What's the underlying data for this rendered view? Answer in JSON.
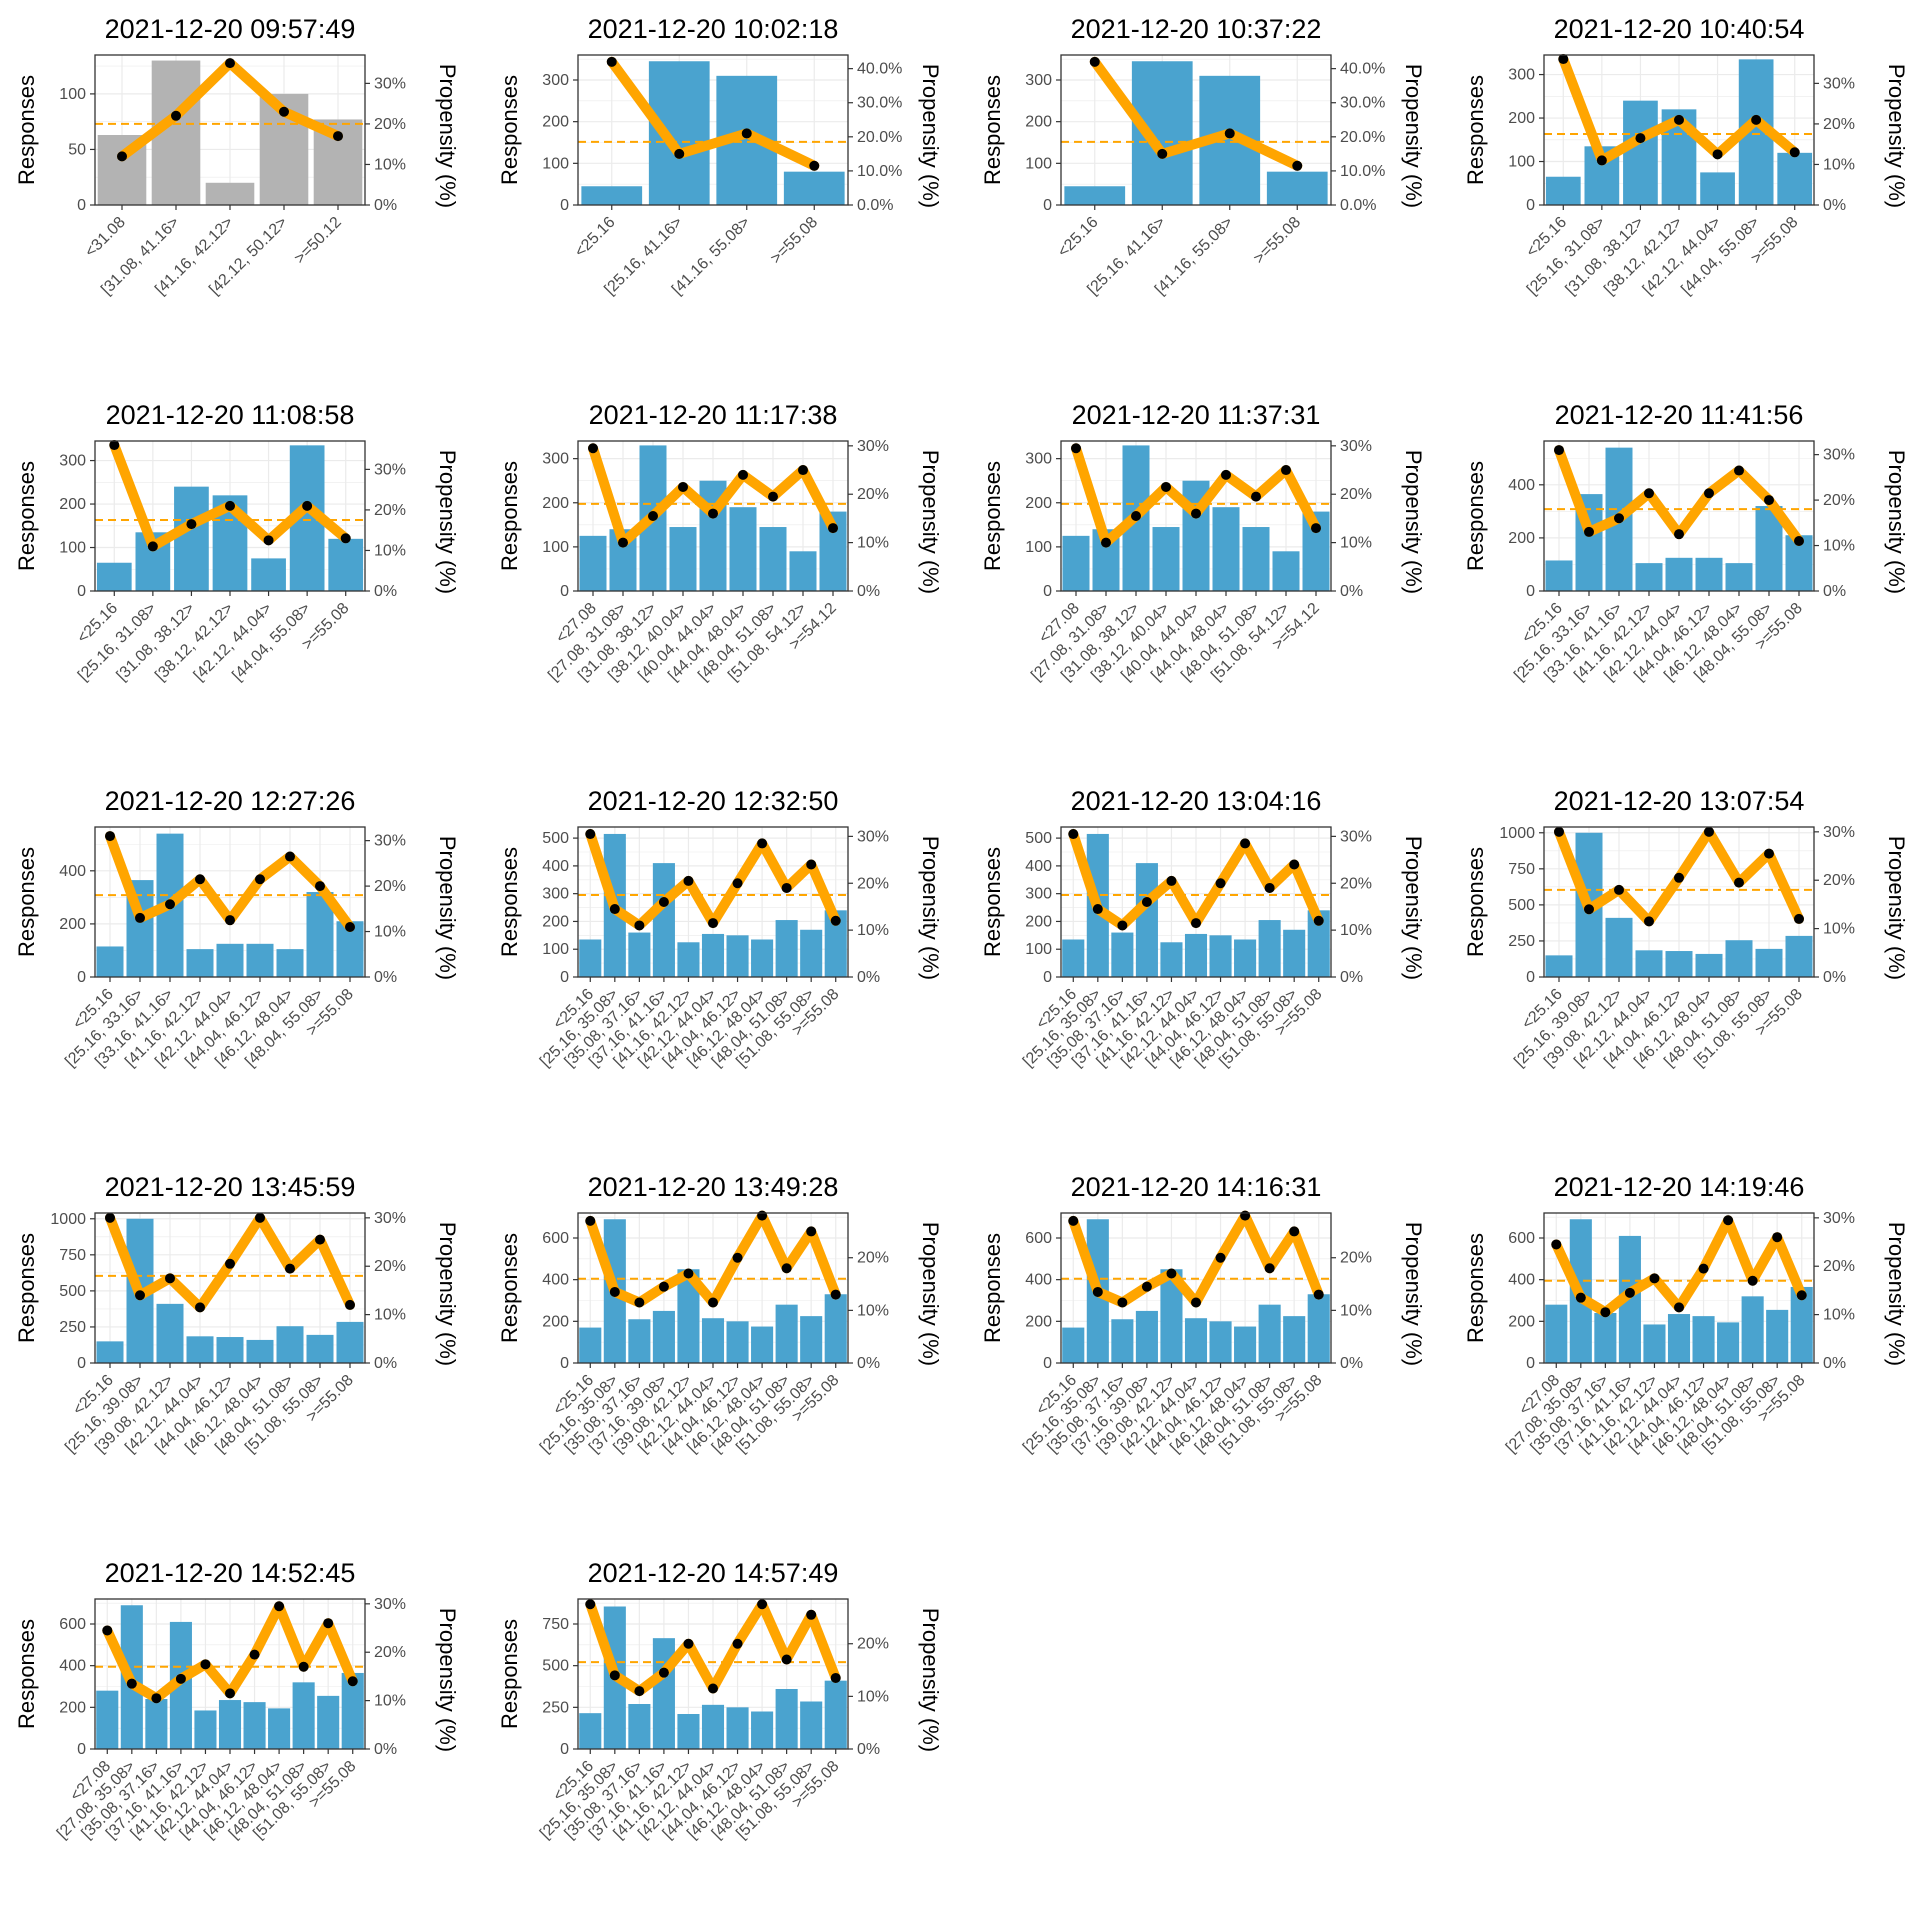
{
  "colors": {
    "bar_highlight": "#4aa3cf",
    "bar_muted": "#b3b3b3",
    "line": "#ffa500",
    "point": "#000000",
    "grid": "#ebebeb",
    "panel_border": "#333333",
    "mean_line": "#ffa500"
  },
  "chart_data": [
    {
      "type": "bar+line",
      "title": "2021-12-20 09:57:49",
      "ylabel": "Responses",
      "y2label": "Propensity (%)",
      "ylim": [
        0,
        135
      ],
      "y2lim": [
        0,
        0.37
      ],
      "yticks": [
        0,
        50,
        100
      ],
      "y2ticks": [
        0,
        0.1,
        0.2,
        0.3
      ],
      "y2format": "0",
      "bar_style": "muted",
      "categories": [
        "<31.08",
        "[31.08, 41.16>",
        "[41.16, 42.12>",
        "[42.12, 50.12>",
        ">=50.12"
      ],
      "responses": [
        63,
        130,
        20,
        100,
        77
      ],
      "propensity": [
        0.12,
        0.22,
        0.35,
        0.23,
        0.17
      ],
      "mean_propensity": 0.2
    },
    {
      "type": "bar+line",
      "title": "2021-12-20 10:02:18",
      "ylabel": "Responses",
      "y2label": "Propensity (%)",
      "ylim": [
        0,
        360
      ],
      "y2lim": [
        0,
        0.44
      ],
      "yticks": [
        0,
        100,
        200,
        300
      ],
      "y2ticks": [
        0,
        0.1,
        0.2,
        0.3,
        0.4
      ],
      "y2format": "1",
      "bar_style": "highlight",
      "categories": [
        "<25.16",
        "[25.16, 41.16>",
        "[41.16, 55.08>",
        ">=55.08"
      ],
      "responses": [
        45,
        345,
        310,
        80
      ],
      "propensity": [
        0.42,
        0.15,
        0.21,
        0.115
      ],
      "mean_propensity": 0.185
    },
    {
      "type": "bar+line",
      "title": "2021-12-20 10:37:22",
      "ylabel": "Responses",
      "y2label": "Propensity (%)",
      "ylim": [
        0,
        360
      ],
      "y2lim": [
        0,
        0.44
      ],
      "yticks": [
        0,
        100,
        200,
        300
      ],
      "y2ticks": [
        0,
        0.1,
        0.2,
        0.3,
        0.4
      ],
      "y2format": "1",
      "bar_style": "highlight",
      "categories": [
        "<25.16",
        "[25.16, 41.16>",
        "[41.16, 55.08>",
        ">=55.08"
      ],
      "responses": [
        45,
        345,
        310,
        80
      ],
      "propensity": [
        0.42,
        0.15,
        0.21,
        0.115
      ],
      "mean_propensity": 0.185
    },
    {
      "type": "bar+line",
      "title": "2021-12-20 10:40:54",
      "ylabel": "Responses",
      "y2label": "Propensity (%)",
      "ylim": [
        0,
        345
      ],
      "y2lim": [
        0,
        0.37
      ],
      "yticks": [
        0,
        100,
        200,
        300
      ],
      "y2ticks": [
        0,
        0.1,
        0.2,
        0.3
      ],
      "y2format": "0",
      "bar_style": "highlight",
      "categories": [
        "<25.16",
        "[25.16, 31.08>",
        "[31.08, 38.12>",
        "[38.12, 42.12>",
        "[42.12, 44.04>",
        "[44.04, 55.08>",
        ">=55.08"
      ],
      "responses": [
        65,
        135,
        240,
        220,
        75,
        335,
        120
      ],
      "propensity": [
        0.36,
        0.11,
        0.165,
        0.21,
        0.125,
        0.21,
        0.13
      ],
      "mean_propensity": 0.175
    },
    {
      "type": "bar+line",
      "title": "2021-12-20 11:08:58",
      "ylabel": "Responses",
      "y2label": "Propensity (%)",
      "ylim": [
        0,
        345
      ],
      "y2lim": [
        0,
        0.37
      ],
      "yticks": [
        0,
        100,
        200,
        300
      ],
      "y2ticks": [
        0,
        0.1,
        0.2,
        0.3
      ],
      "y2format": "0",
      "bar_style": "highlight",
      "categories": [
        "<25.16",
        "[25.16, 31.08>",
        "[31.08, 38.12>",
        "[38.12, 42.12>",
        "[42.12, 44.04>",
        "[44.04, 55.08>",
        ">=55.08"
      ],
      "responses": [
        65,
        135,
        240,
        220,
        75,
        335,
        120
      ],
      "propensity": [
        0.36,
        0.11,
        0.165,
        0.21,
        0.125,
        0.21,
        0.13
      ],
      "mean_propensity": 0.175
    },
    {
      "type": "bar+line",
      "title": "2021-12-20 11:17:38",
      "ylabel": "Responses",
      "y2label": "Propensity (%)",
      "ylim": [
        0,
        340
      ],
      "y2lim": [
        0,
        0.31
      ],
      "yticks": [
        0,
        100,
        200,
        300
      ],
      "y2ticks": [
        0,
        0.1,
        0.2,
        0.3
      ],
      "y2format": "0",
      "bar_style": "highlight",
      "categories": [
        "<27.08",
        "[27.08, 31.08>",
        "[31.08, 38.12>",
        "[38.12, 40.04>",
        "[40.04, 44.04>",
        "[44.04, 48.04>",
        "[48.04, 51.08>",
        "[51.08, 54.12>",
        ">=54.12"
      ],
      "responses": [
        125,
        140,
        330,
        145,
        250,
        190,
        145,
        90,
        180
      ],
      "propensity": [
        0.295,
        0.1,
        0.155,
        0.215,
        0.16,
        0.24,
        0.195,
        0.25,
        0.13
      ],
      "mean_propensity": 0.18
    },
    {
      "type": "bar+line",
      "title": "2021-12-20 11:37:31",
      "ylabel": "Responses",
      "y2label": "Propensity (%)",
      "ylim": [
        0,
        340
      ],
      "y2lim": [
        0,
        0.31
      ],
      "yticks": [
        0,
        100,
        200,
        300
      ],
      "y2ticks": [
        0,
        0.1,
        0.2,
        0.3
      ],
      "y2format": "0",
      "bar_style": "highlight",
      "categories": [
        "<27.08",
        "[27.08, 31.08>",
        "[31.08, 38.12>",
        "[38.12, 40.04>",
        "[40.04, 44.04>",
        "[44.04, 48.04>",
        "[48.04, 51.08>",
        "[51.08, 54.12>",
        ">=54.12"
      ],
      "responses": [
        125,
        140,
        330,
        145,
        250,
        190,
        145,
        90,
        180
      ],
      "propensity": [
        0.295,
        0.1,
        0.155,
        0.215,
        0.16,
        0.24,
        0.195,
        0.25,
        0.13
      ],
      "mean_propensity": 0.18
    },
    {
      "type": "bar+line",
      "title": "2021-12-20 11:41:56",
      "ylabel": "Responses",
      "y2label": "Propensity (%)",
      "ylim": [
        0,
        565
      ],
      "y2lim": [
        0,
        0.33
      ],
      "yticks": [
        0,
        200,
        400
      ],
      "y2ticks": [
        0,
        0.1,
        0.2,
        0.3
      ],
      "y2format": "0",
      "bar_style": "highlight",
      "categories": [
        "<25.16",
        "[25.16, 33.16>",
        "[33.16, 41.16>",
        "[41.16, 42.12>",
        "[42.12, 44.04>",
        "[44.04, 46.12>",
        "[46.12, 48.04>",
        "[48.04, 55.08>",
        ">=55.08"
      ],
      "responses": [
        115,
        365,
        540,
        105,
        125,
        125,
        105,
        320,
        210
      ],
      "propensity": [
        0.31,
        0.13,
        0.16,
        0.215,
        0.125,
        0.215,
        0.265,
        0.2,
        0.11
      ],
      "mean_propensity": 0.18
    },
    {
      "type": "bar+line",
      "title": "2021-12-20 12:27:26",
      "ylabel": "Responses",
      "y2label": "Propensity (%)",
      "ylim": [
        0,
        565
      ],
      "y2lim": [
        0,
        0.33
      ],
      "yticks": [
        0,
        200,
        400
      ],
      "y2ticks": [
        0,
        0.1,
        0.2,
        0.3
      ],
      "y2format": "0",
      "bar_style": "highlight",
      "categories": [
        "<25.16",
        "[25.16, 33.16>",
        "[33.16, 41.16>",
        "[41.16, 42.12>",
        "[42.12, 44.04>",
        "[44.04, 46.12>",
        "[46.12, 48.04>",
        "[48.04, 55.08>",
        ">=55.08"
      ],
      "responses": [
        115,
        365,
        540,
        105,
        125,
        125,
        105,
        320,
        210
      ],
      "propensity": [
        0.31,
        0.13,
        0.16,
        0.215,
        0.125,
        0.215,
        0.265,
        0.2,
        0.11
      ],
      "mean_propensity": 0.18
    },
    {
      "type": "bar+line",
      "title": "2021-12-20 12:32:50",
      "ylabel": "Responses",
      "y2label": "Propensity (%)",
      "ylim": [
        0,
        540
      ],
      "y2lim": [
        0,
        0.32
      ],
      "yticks": [
        0,
        100,
        200,
        300,
        400,
        500
      ],
      "y2ticks": [
        0,
        0.1,
        0.2,
        0.3
      ],
      "y2format": "0",
      "bar_style": "highlight",
      "categories": [
        "<25.16",
        "[25.16, 35.08>",
        "[35.08, 37.16>",
        "[37.16, 41.16>",
        "[41.16, 42.12>",
        "[42.12, 44.04>",
        "[44.04, 46.12>",
        "[46.12, 48.04>",
        "[48.04, 51.08>",
        "[51.08, 55.08>",
        ">=55.08"
      ],
      "responses": [
        135,
        515,
        160,
        410,
        125,
        155,
        150,
        135,
        205,
        170,
        240
      ],
      "propensity": [
        0.305,
        0.145,
        0.11,
        0.16,
        0.205,
        0.115,
        0.2,
        0.285,
        0.19,
        0.24,
        0.12
      ],
      "mean_propensity": 0.175
    },
    {
      "type": "bar+line",
      "title": "2021-12-20 13:04:16",
      "ylabel": "Responses",
      "y2label": "Propensity (%)",
      "ylim": [
        0,
        540
      ],
      "y2lim": [
        0,
        0.32
      ],
      "yticks": [
        0,
        100,
        200,
        300,
        400,
        500
      ],
      "y2ticks": [
        0,
        0.1,
        0.2,
        0.3
      ],
      "y2format": "0",
      "bar_style": "highlight",
      "categories": [
        "<25.16",
        "[25.16, 35.08>",
        "[35.08, 37.16>",
        "[37.16, 41.16>",
        "[41.16, 42.12>",
        "[42.12, 44.04>",
        "[44.04, 46.12>",
        "[46.12, 48.04>",
        "[48.04, 51.08>",
        "[51.08, 55.08>",
        ">=55.08"
      ],
      "responses": [
        135,
        515,
        160,
        410,
        125,
        155,
        150,
        135,
        205,
        170,
        240
      ],
      "propensity": [
        0.305,
        0.145,
        0.11,
        0.16,
        0.205,
        0.115,
        0.2,
        0.285,
        0.19,
        0.24,
        0.12
      ],
      "mean_propensity": 0.175
    },
    {
      "type": "bar+line",
      "title": "2021-12-20 13:07:54",
      "ylabel": "Responses",
      "y2label": "Propensity (%)",
      "ylim": [
        0,
        1040
      ],
      "y2lim": [
        0,
        0.31
      ],
      "yticks": [
        0,
        250,
        500,
        750,
        1000
      ],
      "y2ticks": [
        0,
        0.1,
        0.2,
        0.3
      ],
      "y2format": "0",
      "bar_style": "highlight",
      "categories": [
        "<25.16",
        "[25.16, 39.08>",
        "[39.08, 42.12>",
        "[42.12, 44.04>",
        "[44.04, 46.12>",
        "[46.12, 48.04>",
        "[48.04, 51.08>",
        "[51.08, 55.08>",
        ">=55.08"
      ],
      "responses": [
        150,
        1000,
        410,
        185,
        180,
        160,
        255,
        195,
        285
      ],
      "propensity": [
        0.3,
        0.14,
        0.18,
        0.115,
        0.205,
        0.3,
        0.195,
        0.255,
        0.12
      ],
      "mean_propensity": 0.18
    },
    {
      "type": "bar+line",
      "title": "2021-12-20 13:45:59",
      "ylabel": "Responses",
      "y2label": "Propensity (%)",
      "ylim": [
        0,
        1040
      ],
      "y2lim": [
        0,
        0.31
      ],
      "yticks": [
        0,
        250,
        500,
        750,
        1000
      ],
      "y2ticks": [
        0,
        0.1,
        0.2,
        0.3
      ],
      "y2format": "0",
      "bar_style": "highlight",
      "categories": [
        "<25.16",
        "[25.16, 39.08>",
        "[39.08, 42.12>",
        "[42.12, 44.04>",
        "[44.04, 46.12>",
        "[46.12, 48.04>",
        "[48.04, 51.08>",
        "[51.08, 55.08>",
        ">=55.08"
      ],
      "responses": [
        150,
        1000,
        410,
        185,
        180,
        160,
        255,
        195,
        285
      ],
      "propensity": [
        0.3,
        0.14,
        0.175,
        0.115,
        0.205,
        0.3,
        0.195,
        0.255,
        0.12
      ],
      "mean_propensity": 0.18
    },
    {
      "type": "bar+line",
      "title": "2021-12-20 13:49:28",
      "ylabel": "Responses",
      "y2label": "Propensity (%)",
      "ylim": [
        0,
        720
      ],
      "y2lim": [
        0,
        0.285
      ],
      "yticks": [
        0,
        200,
        400,
        600
      ],
      "y2ticks": [
        0,
        0.1,
        0.2
      ],
      "y2format": "0",
      "bar_style": "highlight",
      "categories": [
        "<25.16",
        "[25.16, 35.08>",
        "[35.08, 37.16>",
        "[37.16, 39.08>",
        "[39.08, 42.12>",
        "[42.12, 44.04>",
        "[44.04, 46.12>",
        "[46.12, 48.04>",
        "[48.04, 51.08>",
        "[51.08, 55.08>",
        ">=55.08"
      ],
      "responses": [
        170,
        690,
        210,
        250,
        450,
        215,
        200,
        175,
        280,
        225,
        330
      ],
      "propensity": [
        0.27,
        0.135,
        0.115,
        0.145,
        0.17,
        0.115,
        0.2,
        0.28,
        0.18,
        0.25,
        0.13
      ],
      "mean_propensity": 0.16
    },
    {
      "type": "bar+line",
      "title": "2021-12-20 14:16:31",
      "ylabel": "Responses",
      "y2label": "Propensity (%)",
      "ylim": [
        0,
        720
      ],
      "y2lim": [
        0,
        0.285
      ],
      "yticks": [
        0,
        200,
        400,
        600
      ],
      "y2ticks": [
        0,
        0.1,
        0.2
      ],
      "y2format": "0",
      "bar_style": "highlight",
      "categories": [
        "<25.16",
        "[25.16, 35.08>",
        "[35.08, 37.16>",
        "[37.16, 39.08>",
        "[39.08, 42.12>",
        "[42.12, 44.04>",
        "[44.04, 46.12>",
        "[46.12, 48.04>",
        "[48.04, 51.08>",
        "[51.08, 55.08>",
        ">=55.08"
      ],
      "responses": [
        170,
        690,
        210,
        250,
        450,
        215,
        200,
        175,
        280,
        225,
        330
      ],
      "propensity": [
        0.27,
        0.135,
        0.115,
        0.145,
        0.17,
        0.115,
        0.2,
        0.28,
        0.18,
        0.25,
        0.13
      ],
      "mean_propensity": 0.16
    },
    {
      "type": "bar+line",
      "title": "2021-12-20 14:19:46",
      "ylabel": "Responses",
      "y2label": "Propensity (%)",
      "ylim": [
        0,
        720
      ],
      "y2lim": [
        0,
        0.31
      ],
      "yticks": [
        0,
        200,
        400,
        600
      ],
      "y2ticks": [
        0,
        0.1,
        0.2,
        0.3
      ],
      "y2format": "0",
      "bar_style": "highlight",
      "categories": [
        "<27.08",
        "[27.08, 35.08>",
        "[35.08, 37.16>",
        "[37.16, 41.16>",
        "[41.16, 42.12>",
        "[42.12, 44.04>",
        "[44.04, 46.12>",
        "[46.12, 48.04>",
        "[48.04, 51.08>",
        "[51.08, 55.08>",
        ">=55.08"
      ],
      "responses": [
        280,
        690,
        240,
        610,
        185,
        235,
        225,
        195,
        320,
        255,
        365
      ],
      "propensity": [
        0.245,
        0.135,
        0.105,
        0.145,
        0.175,
        0.115,
        0.195,
        0.295,
        0.17,
        0.26,
        0.14
      ],
      "mean_propensity": 0.17
    },
    {
      "type": "bar+line",
      "title": "2021-12-20 14:52:45",
      "ylabel": "Responses",
      "y2label": "Propensity (%)",
      "ylim": [
        0,
        720
      ],
      "y2lim": [
        0,
        0.31
      ],
      "yticks": [
        0,
        200,
        400,
        600
      ],
      "y2ticks": [
        0,
        0.1,
        0.2,
        0.3
      ],
      "y2format": "0",
      "bar_style": "highlight",
      "categories": [
        "<27.08",
        "[27.08, 35.08>",
        "[35.08, 37.16>",
        "[37.16, 41.16>",
        "[41.16, 42.12>",
        "[42.12, 44.04>",
        "[44.04, 46.12>",
        "[46.12, 48.04>",
        "[48.04, 51.08>",
        "[51.08, 55.08>",
        ">=55.08"
      ],
      "responses": [
        280,
        690,
        240,
        610,
        185,
        235,
        225,
        195,
        320,
        255,
        365
      ],
      "propensity": [
        0.245,
        0.135,
        0.105,
        0.145,
        0.175,
        0.115,
        0.195,
        0.295,
        0.17,
        0.26,
        0.14
      ],
      "mean_propensity": 0.17
    },
    {
      "type": "bar+line",
      "title": "2021-12-20 14:57:49",
      "ylabel": "Responses",
      "y2label": "Propensity (%)",
      "ylim": [
        0,
        900
      ],
      "y2lim": [
        0,
        0.285
      ],
      "yticks": [
        0,
        250,
        500,
        750
      ],
      "y2ticks": [
        0,
        0.1,
        0.2
      ],
      "y2format": "0",
      "bar_style": "highlight",
      "categories": [
        "<25.16",
        "[25.16, 35.08>",
        "[35.08, 37.16>",
        "[37.16, 41.16>",
        "[41.16, 42.12>",
        "[42.12, 44.04>",
        "[44.04, 46.12>",
        "[46.12, 48.04>",
        "[48.04, 51.08>",
        "[51.08, 55.08>",
        ">=55.08"
      ],
      "responses": [
        215,
        855,
        270,
        665,
        210,
        265,
        250,
        225,
        360,
        285,
        410
      ],
      "propensity": [
        0.275,
        0.14,
        0.11,
        0.145,
        0.2,
        0.115,
        0.2,
        0.275,
        0.17,
        0.255,
        0.135
      ],
      "mean_propensity": 0.165
    }
  ]
}
